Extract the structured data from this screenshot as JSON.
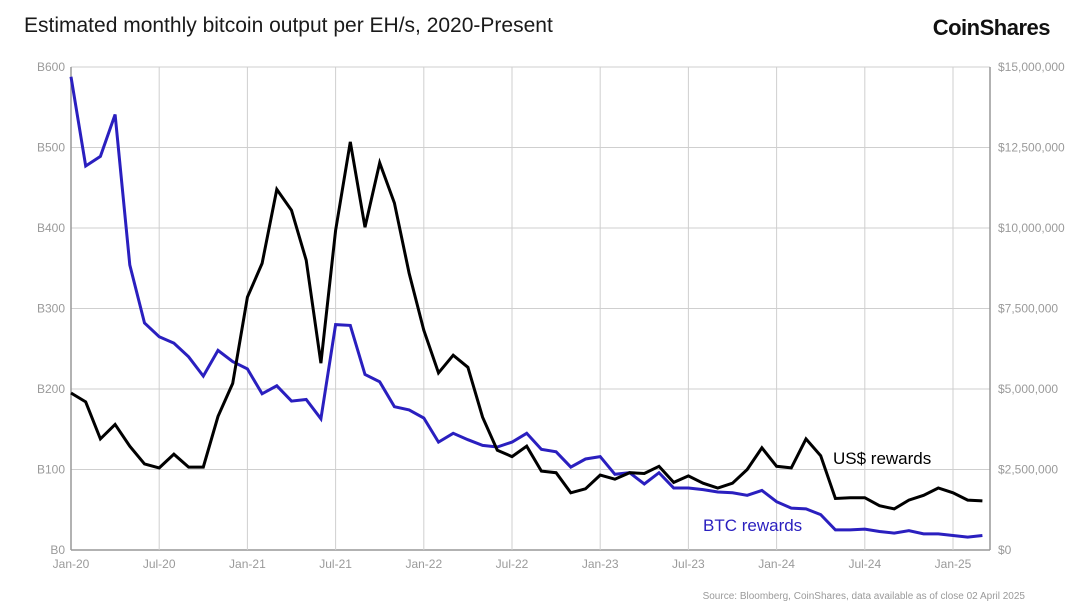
{
  "chart_data": {
    "type": "line",
    "title": "Estimated monthly bitcoin output per EH/s, 2020-Present",
    "brand": "CoinShares",
    "source": "Source: Bloomberg, CoinShares, data available as of close 02 April 2025",
    "x_start": "Jan-20",
    "x_end": "Mar-25",
    "x_ticks": [
      "Jan-20",
      "Jul-20",
      "Jan-21",
      "Jul-21",
      "Jan-22",
      "Jul-22",
      "Jan-23",
      "Jul-23",
      "Jan-24",
      "Jul-24",
      "Jan-25"
    ],
    "y_left": {
      "ticks": [
        "B0",
        "B100",
        "B200",
        "B300",
        "B400",
        "B500",
        "B600"
      ],
      "range": [
        0,
        600
      ]
    },
    "y_right": {
      "ticks": [
        "$0",
        "$2,500,000",
        "$5,000,000",
        "$7,500,000",
        "$10,000,000",
        "$12,500,000",
        "$15,000,000"
      ],
      "range": [
        0,
        15000000
      ]
    },
    "grid": true,
    "series": [
      {
        "name": "BTC rewards",
        "axis": "left",
        "color": "#2a1fbf",
        "values": [
          588,
          477,
          489,
          541,
          354,
          282,
          265,
          257,
          240,
          216,
          248,
          234,
          225,
          194,
          204,
          185,
          187,
          163,
          280,
          279,
          218,
          209,
          178,
          174,
          164,
          134,
          145,
          137,
          130,
          128,
          134,
          145,
          125,
          122,
          103,
          113,
          116,
          94,
          96,
          82,
          96,
          77,
          77,
          75,
          72,
          71,
          68,
          74,
          60,
          52,
          51,
          44,
          25,
          25,
          26,
          23,
          21,
          24,
          20,
          20,
          18,
          16,
          18
        ]
      },
      {
        "name": "US$ rewards",
        "axis": "right",
        "color": "#000000",
        "values": [
          4875000,
          4600000,
          3450000,
          3900000,
          3225000,
          2675000,
          2550000,
          2975000,
          2575000,
          2575000,
          4150000,
          5175000,
          7850000,
          8900000,
          11200000,
          10550000,
          9000000,
          5800000,
          9925000,
          12675000,
          10025000,
          12025000,
          10775000,
          8600000,
          6825000,
          5500000,
          6050000,
          5675000,
          4125000,
          3100000,
          2900000,
          3225000,
          2450000,
          2400000,
          1775000,
          1900000,
          2325000,
          2200000,
          2400000,
          2375000,
          2600000,
          2100000,
          2300000,
          2075000,
          1925000,
          2075000,
          2500000,
          3175000,
          2600000,
          2550000,
          3450000,
          2925000,
          1600000,
          1625000,
          1625000,
          1375000,
          1275000,
          1550000,
          1700000,
          1925000,
          1775000,
          1550000,
          1525000
        ]
      }
    ]
  }
}
